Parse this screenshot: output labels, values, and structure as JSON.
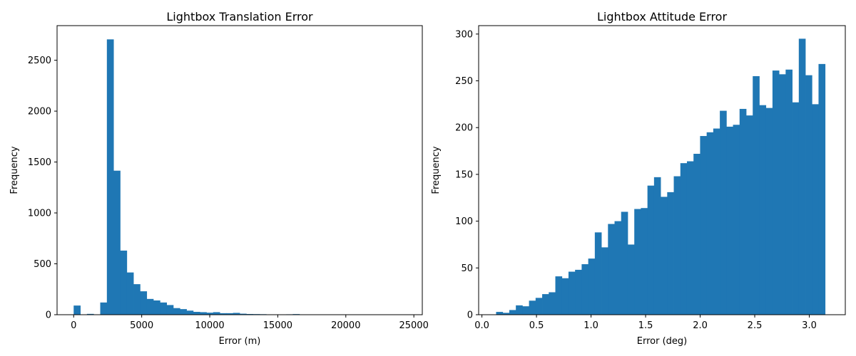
{
  "chart_data": [
    {
      "type": "bar",
      "title": "Lightbox Translation Error",
      "xlabel": "Error (m)",
      "ylabel": "Frequency",
      "xlim": [
        -1220,
        25620
      ],
      "ylim": [
        0,
        2840
      ],
      "xticks": [
        0,
        5000,
        10000,
        15000,
        20000,
        25000
      ],
      "yticks": [
        0,
        500,
        1000,
        1500,
        2000,
        2500
      ],
      "grid": false,
      "color": "#1f77b4",
      "bin_start": 0,
      "bin_width": 488,
      "values": [
        90,
        0,
        8,
        3,
        120,
        2705,
        1415,
        630,
        415,
        300,
        230,
        155,
        140,
        120,
        95,
        65,
        55,
        40,
        28,
        25,
        20,
        25,
        15,
        15,
        18,
        10,
        7,
        6,
        5,
        3,
        3,
        3,
        4,
        6,
        2,
        1,
        1,
        1,
        1,
        0,
        0,
        0,
        0,
        0,
        0,
        0,
        0,
        0,
        0,
        1
      ]
    },
    {
      "type": "bar",
      "title": "Lightbox Attitude Error",
      "xlabel": "Error (deg)",
      "ylabel": "Frequency",
      "xlim": [
        -0.03,
        3.33
      ],
      "ylim": [
        0,
        309
      ],
      "xticks": [
        0.0,
        0.5,
        1.0,
        1.5,
        2.0,
        2.5,
        3.0
      ],
      "yticks": [
        0,
        50,
        100,
        150,
        200,
        250,
        300
      ],
      "grid": false,
      "color": "#1f77b4",
      "bin_start": 0.13,
      "bin_width": 0.0603,
      "values": [
        3,
        2,
        5,
        10,
        9,
        15,
        18,
        22,
        24,
        41,
        39,
        46,
        48,
        54,
        60,
        88,
        72,
        97,
        100,
        110,
        75,
        113,
        114,
        138,
        147,
        126,
        131,
        148,
        162,
        164,
        172,
        191,
        195,
        199,
        218,
        201,
        203,
        220,
        213,
        255,
        224,
        221,
        261,
        257,
        262,
        227,
        295,
        256,
        225,
        268
      ]
    }
  ]
}
